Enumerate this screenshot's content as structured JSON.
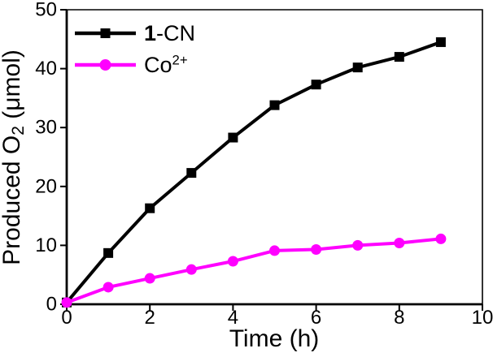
{
  "chart_data": {
    "type": "line",
    "title": "",
    "xlabel": "Time (h)",
    "ylabel": "Produced O2 (μmol)",
    "xlabel_parts": [
      {
        "t": "Time (h)"
      }
    ],
    "ylabel_parts": [
      {
        "t": "Produced O"
      },
      {
        "t": "2",
        "sub": true
      },
      {
        "t": " (μmol)"
      }
    ],
    "x": [
      0,
      1,
      2,
      3,
      4,
      5,
      6,
      7,
      8,
      9
    ],
    "series": [
      {
        "name": "1-CN",
        "label_parts": [
          {
            "t": "1",
            "bold": true
          },
          {
            "t": "-CN"
          }
        ],
        "color": "#000000",
        "marker": "square",
        "values": [
          0.3,
          8.7,
          16.3,
          22.3,
          28.3,
          33.8,
          37.3,
          40.2,
          42.0,
          44.5
        ]
      },
      {
        "name": "Co2+",
        "label_parts": [
          {
            "t": "Co"
          },
          {
            "t": "2+",
            "sup": true
          }
        ],
        "color": "#FF00FF",
        "marker": "circle",
        "values": [
          0.3,
          2.9,
          4.4,
          5.9,
          7.3,
          9.1,
          9.3,
          10.0,
          10.4,
          11.1
        ]
      }
    ],
    "xlim": [
      0,
      10
    ],
    "ylim": [
      0,
      50
    ],
    "x_ticks": [
      "0",
      "2",
      "4",
      "6",
      "8",
      "10"
    ],
    "y_ticks": [
      "0",
      "10",
      "20",
      "30",
      "40",
      "50"
    ],
    "x_tick_values": [
      0,
      2,
      4,
      6,
      8,
      10
    ],
    "y_tick_values": [
      0,
      10,
      20,
      30,
      40,
      50
    ],
    "grid": false,
    "legend_position": "top-left"
  },
  "colors": {
    "background": "#ffffff",
    "axis": "#000000",
    "series_1": "#000000",
    "series_2": "#FF00FF"
  }
}
